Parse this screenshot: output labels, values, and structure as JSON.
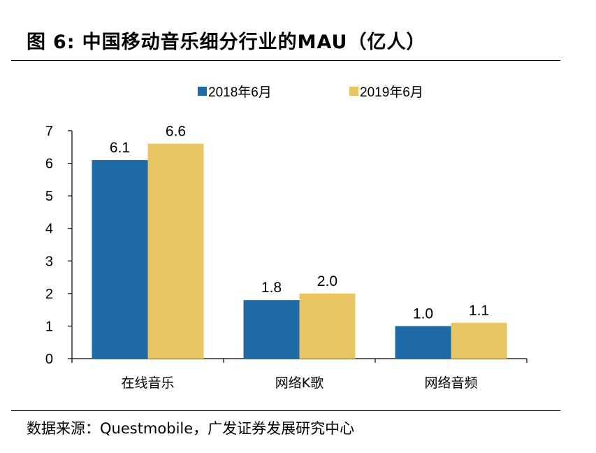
{
  "header": {
    "figure_label": "图",
    "figure_number": "6:",
    "title": "中国移动音乐细分行业的MAU（亿人）"
  },
  "source": {
    "text": "数据来源：Questmobile，广发证券发展研究中心"
  },
  "chart_data": {
    "type": "bar",
    "categories": [
      "在线音乐",
      "网络K歌",
      "网络音频"
    ],
    "series": [
      {
        "name": "2018年6月",
        "values": [
          6.1,
          1.8,
          1.0
        ],
        "labels": [
          "6.1",
          "1.8",
          "1.0"
        ],
        "color": "#1F6BA5"
      },
      {
        "name": "2019年6月",
        "values": [
          6.6,
          2.0,
          1.1
        ],
        "labels": [
          "6.6",
          "2.0",
          "1.1"
        ],
        "color": "#E8C463"
      }
    ],
    "ylim": [
      0,
      7
    ],
    "yticks": [
      0,
      1,
      2,
      3,
      4,
      5,
      6,
      7
    ],
    "legend_position": "top-center",
    "grid": false
  }
}
